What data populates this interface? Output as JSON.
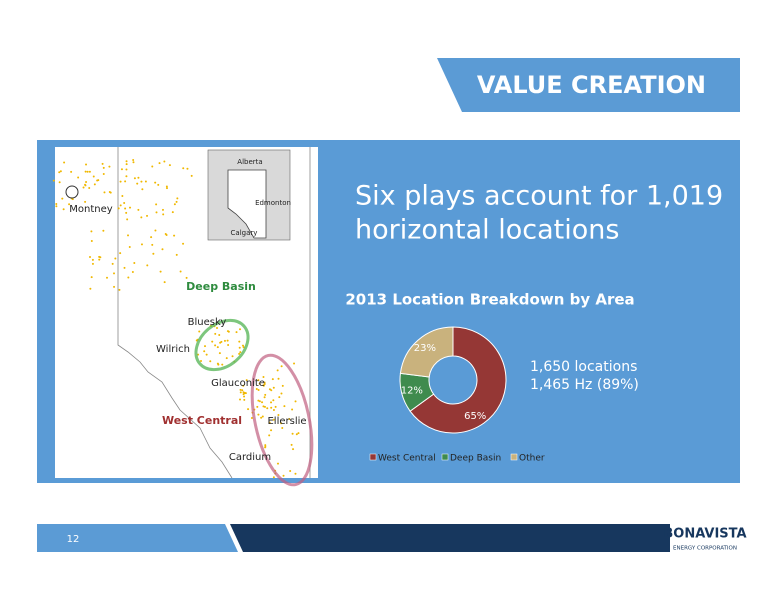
{
  "header": {
    "title": "VALUE CREATION"
  },
  "headline": [
    "Six plays account for 1,019",
    "horizontal locations"
  ],
  "map": {
    "labels": {
      "montney": "Montney",
      "deep_basin": "Deep Basin",
      "bluesky": "Bluesky",
      "wilrich": "Wilrich",
      "glauconite": "Glauconite",
      "west_central": "West Central",
      "ellerslie": "Ellerslie",
      "cardium": "Cardium"
    },
    "inset": {
      "alberta": "Alberta",
      "edmonton": "Edmonton",
      "calgary": "Calgary"
    }
  },
  "chart_data": {
    "type": "donut",
    "title": "2013 Location Breakdown by Area",
    "categories": [
      "West Central",
      "Deep Basin",
      "Other"
    ],
    "values": [
      65,
      12,
      23
    ],
    "value_labels": [
      "65%",
      "12%",
      "23%"
    ],
    "colors": [
      "#953735",
      "#3f8b4e",
      "#c9b27d"
    ]
  },
  "notes": [
    "1,650 locations",
    "1,465 Hz (89%)"
  ],
  "footer": {
    "page": "12",
    "logo": "BONAVISTA",
    "logo_sub": "ENERGY CORPORATION"
  }
}
